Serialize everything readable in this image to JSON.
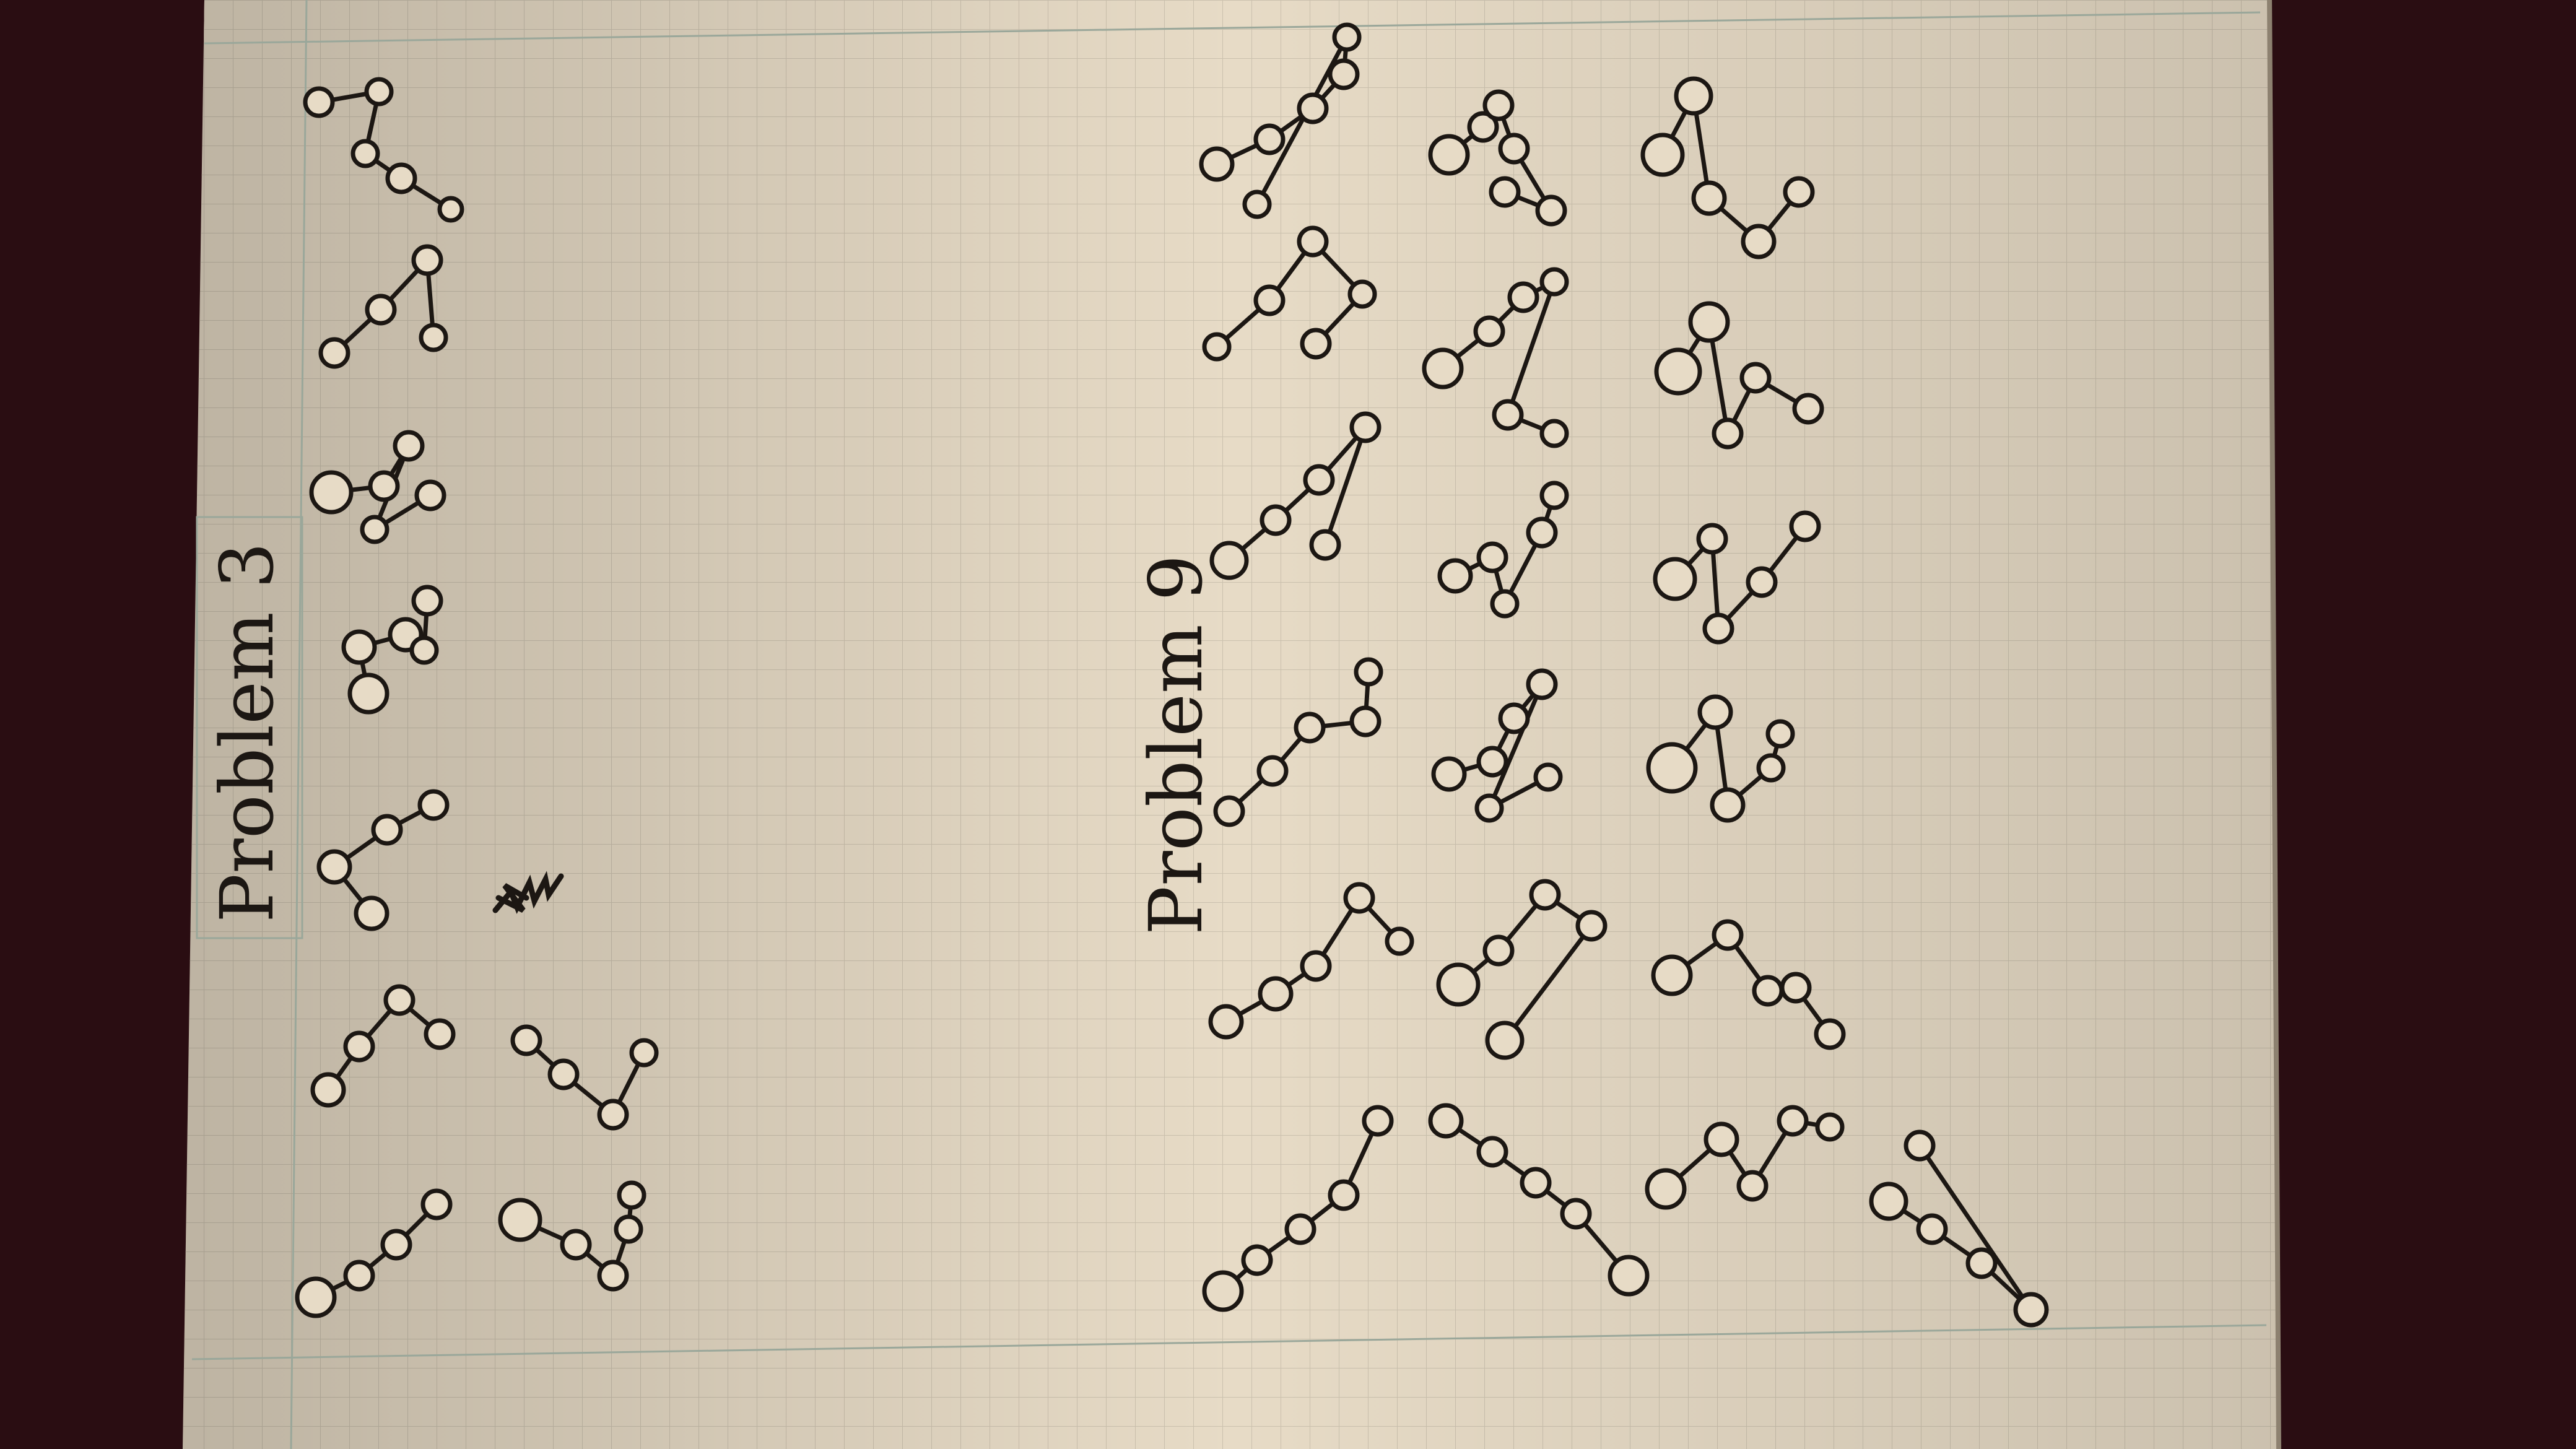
{
  "colors": {
    "background_dark": "#2a0d12",
    "paper": "#e7dbc6",
    "grid": "#c9bfad",
    "ink": "#1c1713"
  },
  "labels": {
    "problem_3": "Problem 3",
    "problem_9": "Problem 9"
  }
}
